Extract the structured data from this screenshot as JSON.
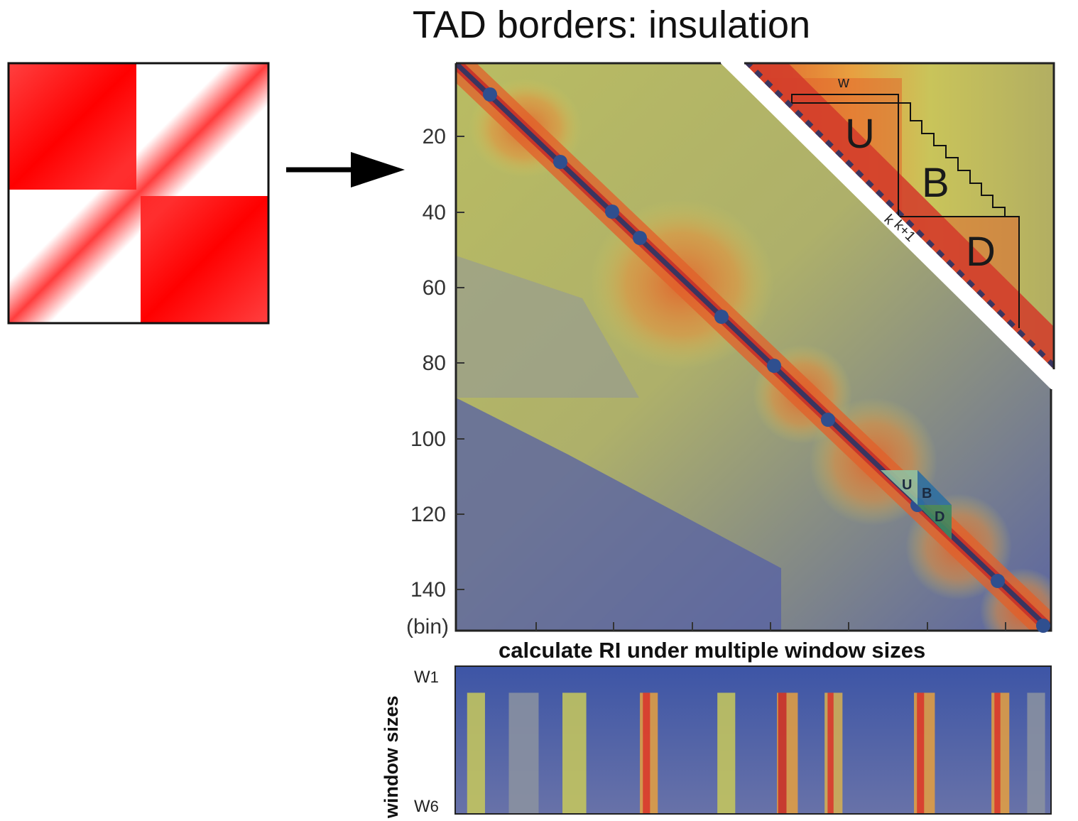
{
  "title": "TAD borders: insulation",
  "y_axis": {
    "ticks": [
      "20",
      "40",
      "60",
      "80",
      "100",
      "120",
      "140"
    ],
    "unit": "(bin)"
  },
  "inset": {
    "w_label": "w",
    "regions": [
      "U",
      "B",
      "D"
    ],
    "diag_labels": [
      "k",
      "k+1"
    ]
  },
  "boundary_marker": {
    "regions": [
      "U",
      "B",
      "D"
    ]
  },
  "bottom": {
    "title": "calculate RI under multiple window sizes",
    "ylabel": "window  sizes",
    "w_first": "W",
    "w_first_sub": "1",
    "w_last": "W",
    "w_last_sub": "6"
  },
  "colors": {
    "schematic_red": "#ff1a1a",
    "heat_low": "#4a55a0",
    "heat_mid": "#c8cc5a",
    "heat_high": "#e2602a",
    "diagonal": "#3a3560",
    "boundary_dot": "#2f4f8f"
  }
}
